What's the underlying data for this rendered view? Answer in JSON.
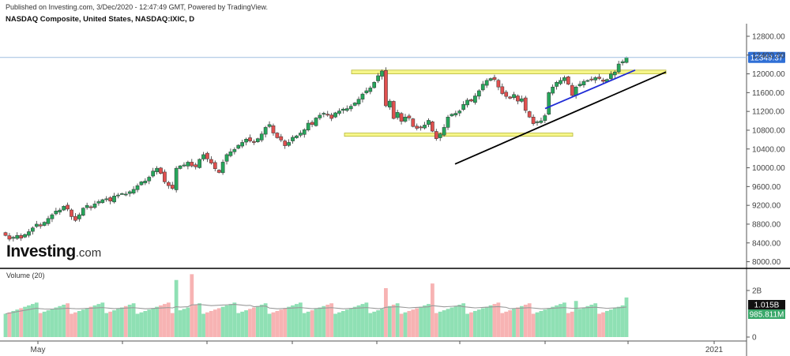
{
  "header": {
    "published": "Published on Investing.com, 3/Dec/2020 - 12:47:49 GMT, Powered by TradingView.",
    "symbol": "NASDAQ Composite, United States, NASDAQ:IXIC, D"
  },
  "logo": {
    "brand": "Investing",
    "suffix": ".com"
  },
  "volume_pane": {
    "title": "Volume (20)"
  },
  "colors": {
    "up": "#26a65b",
    "down": "#e0504f",
    "vol_up": "#8fe0b4",
    "vol_down": "#f7b3b3",
    "ma": "#9a9a9a",
    "zone": "#f6f68a",
    "trend_blue": "#1f2bd6",
    "trend_black": "#000000",
    "price_line": "#9fbfe0",
    "badge": "#2f6fd6"
  },
  "chart_data": [
    {
      "type": "candlestick",
      "title": "NASDAQ Composite, United States, NASDAQ:IXIC, D",
      "ylim": [
        7900,
        12900
      ],
      "y_ticks": [
        12800,
        12400,
        12000,
        11600,
        11200,
        10800,
        10400,
        10000,
        9600,
        9200,
        8800,
        8400,
        8000
      ],
      "y_tick_labels": [
        "12800.00",
        "12400.00",
        "12000.00",
        "11600.00",
        "11200.00",
        "10800.00",
        "10400.00",
        "10000.00",
        "9600.00",
        "9200.00",
        "8800.00",
        "8400.00",
        "8000.00"
      ],
      "x_tick_labels": [
        "May",
        "2021"
      ],
      "last_price": 12349.37,
      "last_price_label": "12349.37",
      "close": [
        8560,
        8480,
        8520,
        8560,
        8500,
        8580,
        8640,
        8720,
        8800,
        8760,
        8840,
        8920,
        9000,
        9080,
        9100,
        9180,
        9120,
        8960,
        8880,
        9000,
        9140,
        9200,
        9160,
        9230,
        9280,
        9320,
        9340,
        9290,
        9400,
        9420,
        9450,
        9440,
        9490,
        9540,
        9620,
        9700,
        9720,
        9800,
        9930,
        9990,
        9880,
        9700,
        9620,
        9560,
        9990,
        10040,
        10060,
        10120,
        10040,
        10020,
        10180,
        10280,
        10190,
        10100,
        9980,
        9900,
        10120,
        10280,
        10340,
        10390,
        10480,
        10540,
        10610,
        10570,
        10540,
        10620,
        10720,
        10860,
        10920,
        10740,
        10640,
        10590,
        10470,
        10540,
        10650,
        10680,
        10740,
        10810,
        10950,
        10920,
        11060,
        11120,
        11160,
        11120,
        11050,
        11170,
        11210,
        11250,
        11260,
        11310,
        11380,
        11460,
        11570,
        11640,
        11700,
        11820,
        11960,
        12060,
        11320,
        11420,
        11050,
        11180,
        10990,
        11080,
        11060,
        10880,
        10840,
        10860,
        10910,
        11010,
        10780,
        10620,
        10720,
        10860,
        11080,
        11140,
        11160,
        11210,
        11350,
        11440,
        11420,
        11530,
        11640,
        11780,
        11860,
        11900,
        11880,
        11720,
        11580,
        11520,
        11480,
        11560,
        11420,
        11470,
        11220,
        11080,
        10940,
        10980,
        11000,
        11110,
        11600,
        11720,
        11820,
        11860,
        11920,
        11780,
        11540,
        11720,
        11780,
        11840,
        11860,
        11880,
        11920,
        11900,
        11840,
        11880,
        12000,
        12040,
        12210,
        12260,
        12349.37
      ],
      "volume_axis_ticks": [
        "2B",
        "0"
      ],
      "volume_labels": [
        "1.015B",
        "985.811M"
      ],
      "volume_ylim": [
        0,
        2600000000
      ],
      "annotations": [
        {
          "kind": "zone",
          "color": "#f6f68a",
          "y_range": [
            12000,
            12080
          ]
        },
        {
          "kind": "zone",
          "color": "#f6f68a",
          "y_range": [
            10670,
            10740
          ]
        },
        {
          "kind": "trendline",
          "color": "#1f2bd6",
          "y_from": 11260,
          "y_to": 12080
        },
        {
          "kind": "trendline",
          "color": "#000000",
          "y_from": 10080,
          "y_to": 12040
        }
      ]
    }
  ]
}
